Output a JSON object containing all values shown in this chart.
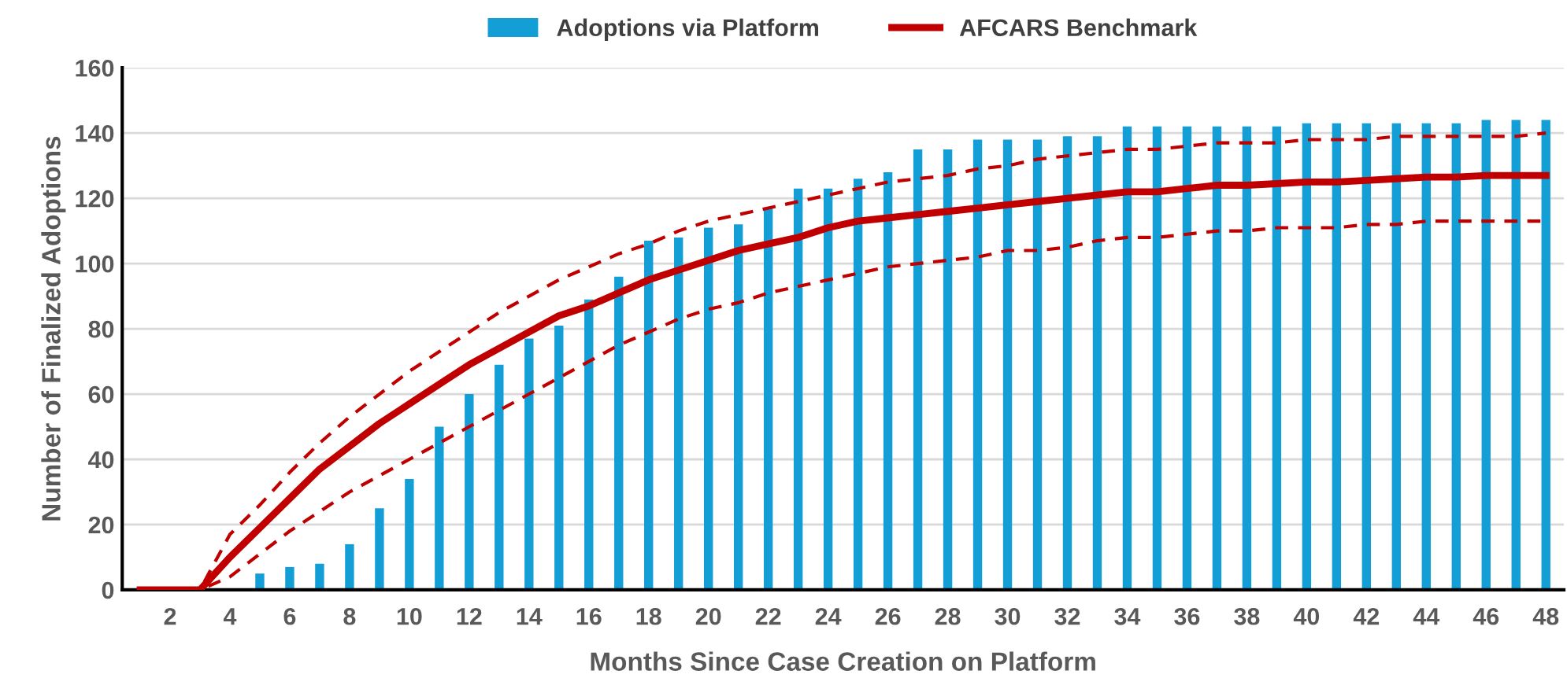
{
  "chart_data": {
    "type": "bar",
    "xlabel": "Months Since Case Creation on Platform",
    "ylabel": "Number of Finalized Adoptions",
    "categories": [
      null,
      "2",
      null,
      "4",
      null,
      "6",
      null,
      "8",
      null,
      "10",
      null,
      "12",
      null,
      "14",
      null,
      "16",
      null,
      "18",
      null,
      "20",
      null,
      "22",
      null,
      "24",
      null,
      "26",
      null,
      "28",
      null,
      "30",
      null,
      "32",
      null,
      "34",
      null,
      "36",
      null,
      "38",
      null,
      "40",
      null,
      "42",
      null,
      "44",
      null,
      "46",
      null,
      "48"
    ],
    "series": [
      {
        "name": "Adoptions via Platform",
        "color": "#139fd6",
        "values": [
          0,
          0,
          0,
          0,
          5,
          7,
          8,
          14,
          25,
          34,
          50,
          60,
          69,
          77,
          81,
          89,
          96,
          107,
          108,
          111,
          112,
          117,
          123,
          123,
          126,
          128,
          135,
          135,
          138,
          138,
          138,
          139,
          139,
          142,
          142,
          142,
          142,
          142,
          142,
          143,
          143,
          143,
          143,
          143,
          143,
          144,
          144,
          144
        ]
      },
      {
        "name": "AFCARS Benchmark",
        "type": "line",
        "line_style": "solid",
        "color": "#c00000",
        "values": [
          0,
          0,
          0,
          10,
          19,
          28,
          37,
          44,
          51,
          57,
          63,
          69,
          74,
          79,
          84,
          87,
          91,
          95,
          98,
          101,
          104,
          106,
          108,
          111,
          113,
          114,
          115,
          116,
          117,
          118,
          119,
          120,
          121,
          122,
          122,
          123,
          124,
          124,
          124.5,
          125,
          125,
          125.5,
          126,
          126.5,
          126.5,
          127,
          127,
          127
        ]
      },
      {
        "type": "line",
        "line_style": "dashed",
        "color": "#c00000",
        "values": [
          0,
          0,
          0,
          17,
          26,
          36,
          45,
          53,
          60,
          67,
          73,
          79,
          85,
          90,
          95,
          99,
          103,
          106,
          110,
          113,
          115,
          117,
          119,
          121,
          123,
          125,
          126,
          127,
          129,
          130,
          132,
          133,
          134,
          135,
          135,
          136,
          137,
          137,
          137,
          138,
          138,
          138,
          139,
          139,
          139,
          139,
          139,
          140
        ]
      },
      {
        "type": "line",
        "line_style": "dashed",
        "color": "#c00000",
        "values": [
          0,
          0,
          0,
          4,
          11,
          18,
          24,
          30,
          35,
          40,
          45,
          50,
          55,
          60,
          65,
          70,
          75,
          79,
          83,
          86,
          88,
          91,
          93,
          95,
          97,
          99,
          100,
          101,
          102,
          104,
          104,
          105,
          107,
          108,
          108,
          109,
          110,
          110,
          111,
          111,
          111,
          112,
          112,
          113,
          113,
          113,
          113,
          113
        ]
      }
    ],
    "ylim": [
      0,
      160
    ],
    "yticks": [
      0,
      20,
      40,
      60,
      80,
      100,
      120,
      140,
      160
    ],
    "grid": "y",
    "legend": "top",
    "marker": "none"
  }
}
